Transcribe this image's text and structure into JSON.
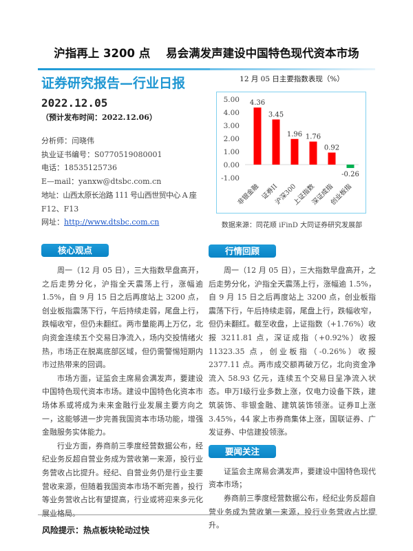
{
  "headline": "沪指再上 3200 点    易会满发声建设中国特色现代资本市场",
  "report_title": "证券研究报告—行业日报",
  "date": "2022.12.05",
  "publish_date": "（预计发布时间：2022.12.06）",
  "analyst": {
    "name": "分析师：闫晓伟",
    "license": "执业证书编号：S0770519080001",
    "phone": "电话：18535125736",
    "email": "E—mail：yanxw@dtsbc.com.cn",
    "address_line1": "地址：山西太原长治路 111 号山西世贸中心 A 座",
    "address_line2": "F12、F13",
    "website_label": "网址：",
    "website": "http://www.dtsbc.com.cn"
  },
  "chart_data": {
    "type": "bar",
    "title": "12 月 05 日主要指数表现（%）",
    "categories": [
      "非银金融",
      "证券II",
      "沪深300",
      "上证指数",
      "深证成指",
      "创业板指"
    ],
    "values": [
      4.36,
      3.45,
      1.96,
      1.76,
      0.92,
      -0.26
    ],
    "data_labels": [
      "4.36",
      "3.45",
      "1.96",
      "1.76",
      "0.92",
      "-0.26"
    ],
    "y_ticks": [
      "5.00",
      "4.00",
      "3.00",
      "2.00",
      "1.00",
      "0.00",
      "-1.00"
    ],
    "ylim": [
      -1,
      5
    ],
    "grid": false,
    "colors": {
      "positive": "#ff0000",
      "negative": "#00b050"
    },
    "source": "数据来源：同花顺 iFinD 大同证券研究发展部"
  },
  "core_view": {
    "heading": "核心观点",
    "paragraphs": [
      "周一（12 月 05 日），三大指数早盘高开，之后走势分化，沪指全天震荡上行，涨幅逾 1.5%，自 9 月 15 日之后再度站上 3200 点，创业板指震荡下行，午后持续走弱，尾盘上行，跌幅收窄，但仍未翻红。两市量能再上万亿，北向资金连续五个交易日净流入，场内交投情绪火热，市场正在脱离底部区域，但仍需警惕短期内市过热带来的回调。",
      "市场方面，证监会主席易会满发声，要建设中国特色现代资本市场。建设中国特色化资本市场体系或将成为未来金融行业发展主要方向之一，这能够进一步完善我国资本市场功能，增强金融服务实体能力。",
      "行业方面，券商前三季度经营数据公布，经纪业务反超自营业务成为营收第一来源，投行业务营收占比提升。经纪、自营业务仍是行业主要营收来源，但随着我国资本市场不断完善，投行等业务营收占比有望提高，行业或将迎来多元化展业格局。"
    ],
    "risk": "风险提示：热点板块轮动过快"
  },
  "market_review": {
    "heading": "行情回顾",
    "paragraphs": [
      "周一（12 月 05 日），三大指数早盘高开，之后走势分化，沪指全天震荡上行，涨幅逾 1.5%，自 9 月 15 日之后再度站上 3200 点，创业板指震荡下行，午后持续走弱，尾盘上行，跌幅收窄，但仍未翻红。截至收盘，上证指数（+1.76%）收报 3211.81 点，深证成指（+0.92%）收报 11323.35 点，创业板指（-0.26%）收报 2377.11 点。两市成交额再破万亿，北向资金净流入 58.93 亿元，连续五个交易日呈净流入状态。申万Ⅰ级行业多数上涨，仅电力设备下跌，建筑装饰、非银金融、建筑装饰领涨。证券Ⅱ上涨 3.45%，44 家上市券商集体上涨，国联证券、广发证券、中信建投领涨。"
    ]
  },
  "news": {
    "heading": "要闻关注",
    "paragraphs": [
      "证监会主席易会满发声，要建设中国特色现代资本市场；",
      "券商前三季度经营数据公布，经纪业务反超自营业务成为营收第一来源，投行业务营收占比提升。"
    ]
  }
}
